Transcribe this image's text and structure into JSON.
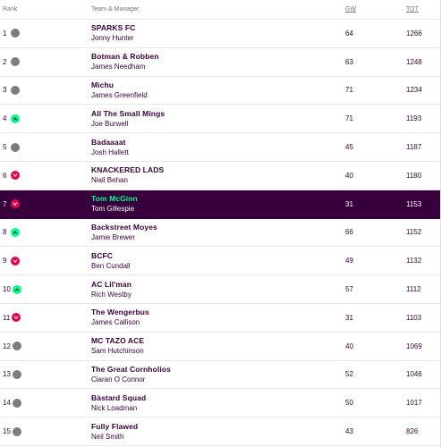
{
  "header": {
    "rank": "Rank",
    "team": "Team & Manager",
    "gw": "GW",
    "tot": "TOT"
  },
  "colors": {
    "same": "#7d7d7d",
    "up": "#00ff87",
    "down": "#e90052",
    "highlight": "#37003c"
  },
  "rows": [
    {
      "rank": "1",
      "move": "same",
      "team": "SPARKS FC",
      "manager": "Jonny Hunter",
      "gw": "64",
      "tot": "1266"
    },
    {
      "rank": "2",
      "move": "same",
      "team": "Botman & Robben",
      "manager": "James Needham",
      "gw": "63",
      "tot": "1248"
    },
    {
      "rank": "3",
      "move": "same",
      "team": "Michu",
      "manager": "James Greenfield",
      "gw": "71",
      "tot": "1234"
    },
    {
      "rank": "4",
      "move": "up",
      "team": "All The Small Mings",
      "manager": "Joe Burwell",
      "gw": "71",
      "tot": "1193"
    },
    {
      "rank": "5",
      "move": "same",
      "team": "Badaaaat",
      "manager": "Josh Hallett",
      "gw": "45",
      "tot": "1187"
    },
    {
      "rank": "6",
      "move": "down",
      "team": "KNACKERED LADS",
      "manager": "Niall Behan",
      "gw": "40",
      "tot": "1180"
    },
    {
      "rank": "7",
      "move": "down",
      "team": "Tom McGinn",
      "manager": "Tom Gillespie",
      "gw": "31",
      "tot": "1153",
      "highlight": true
    },
    {
      "rank": "8",
      "move": "up",
      "team": "Backstreet Moyes",
      "manager": "Jamie Brewer",
      "gw": "66",
      "tot": "1152"
    },
    {
      "rank": "9",
      "move": "down",
      "team": "BCFC",
      "manager": "Ben Cundall",
      "gw": "49",
      "tot": "1132"
    },
    {
      "rank": "10",
      "move": "up",
      "team": "AC Lil'man",
      "manager": "Rich Westby",
      "gw": "57",
      "tot": "1112"
    },
    {
      "rank": "11",
      "move": "down",
      "team": "The Wengerbus",
      "manager": "James Callison",
      "gw": "31",
      "tot": "1103"
    },
    {
      "rank": "12",
      "move": "same",
      "team": "MC TAZO ACE",
      "manager": "Sam Hutchinson",
      "gw": "40",
      "tot": "1069"
    },
    {
      "rank": "13",
      "move": "same",
      "team": "The Great Cornholios",
      "manager": "Ciaran O Connor",
      "gw": "52",
      "tot": "1046"
    },
    {
      "rank": "14",
      "move": "same",
      "team": "Bàstard Squad",
      "manager": "Nick Loadman",
      "gw": "50",
      "tot": "1017"
    },
    {
      "rank": "15",
      "move": "same",
      "team": "Fully Flawed",
      "manager": "Neil Smith",
      "gw": "43",
      "tot": "826"
    }
  ]
}
